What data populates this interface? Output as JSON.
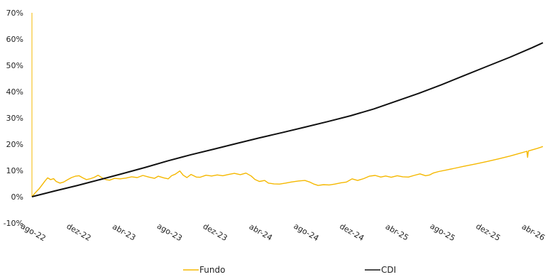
{
  "chart_data": {
    "type": "line",
    "title": "",
    "xlabel": "",
    "ylabel": "",
    "ylim": [
      -10,
      70
    ],
    "yticks": [
      -10,
      0,
      10,
      20,
      30,
      40,
      50,
      60,
      70
    ],
    "ytick_labels": [
      "-10%",
      "0%",
      "10%",
      "20%",
      "30%",
      "40%",
      "50%",
      "60%",
      "70%"
    ],
    "xlim": [
      "2022-08-01",
      "2026-04-30"
    ],
    "xticks": [
      "2022-08-01",
      "2022-12-01",
      "2023-04-01",
      "2023-08-01",
      "2023-12-01",
      "2024-04-01",
      "2024-08-01",
      "2024-12-01",
      "2025-04-01",
      "2025-08-01",
      "2025-12-01",
      "2026-04-01"
    ],
    "xtick_labels": [
      "ago-22",
      "dez-22",
      "abr-23",
      "ago-23",
      "dez-23",
      "abr-24",
      "ago-24",
      "dez-24",
      "abr-25",
      "ago-25",
      "dez-25",
      "abr-26"
    ],
    "grid": false,
    "legend_position": "bottom",
    "series": [
      {
        "name": "Fundo",
        "color": "#F5B800",
        "points": [
          [
            "2022-08-01",
            0
          ],
          [
            "2022-08-10",
            1.5
          ],
          [
            "2022-08-20",
            3.0
          ],
          [
            "2022-08-28",
            4.5
          ],
          [
            "2022-09-05",
            6.0
          ],
          [
            "2022-09-12",
            7.2
          ],
          [
            "2022-09-20",
            6.5
          ],
          [
            "2022-09-28",
            6.9
          ],
          [
            "2022-10-05",
            5.8
          ],
          [
            "2022-10-15",
            5.2
          ],
          [
            "2022-10-25",
            5.6
          ],
          [
            "2022-11-05",
            6.5
          ],
          [
            "2022-11-15",
            7.3
          ],
          [
            "2022-11-25",
            7.8
          ],
          [
            "2022-12-05",
            8.0
          ],
          [
            "2022-12-15",
            7.2
          ],
          [
            "2022-12-25",
            6.5
          ],
          [
            "2023-01-05",
            6.9
          ],
          [
            "2023-01-15",
            7.4
          ],
          [
            "2023-01-25",
            8.2
          ],
          [
            "2023-02-05",
            7.2
          ],
          [
            "2023-02-15",
            6.5
          ],
          [
            "2023-02-25",
            6.3
          ],
          [
            "2023-03-10",
            7.0
          ],
          [
            "2023-03-25",
            6.8
          ],
          [
            "2023-04-10",
            7.1
          ],
          [
            "2023-04-25",
            7.6
          ],
          [
            "2023-05-10",
            7.3
          ],
          [
            "2023-05-25",
            8.1
          ],
          [
            "2023-06-10",
            7.5
          ],
          [
            "2023-06-25",
            7.0
          ],
          [
            "2023-07-05",
            7.8
          ],
          [
            "2023-07-20",
            7.2
          ],
          [
            "2023-08-01",
            6.8
          ],
          [
            "2023-08-10",
            8.0
          ],
          [
            "2023-08-20",
            8.6
          ],
          [
            "2023-09-01",
            9.8
          ],
          [
            "2023-09-10",
            8.2
          ],
          [
            "2023-09-20",
            7.3
          ],
          [
            "2023-10-01",
            8.5
          ],
          [
            "2023-10-15",
            7.5
          ],
          [
            "2023-10-25",
            7.4
          ],
          [
            "2023-11-10",
            8.2
          ],
          [
            "2023-11-25",
            7.9
          ],
          [
            "2023-12-10",
            8.3
          ],
          [
            "2023-12-25",
            8.0
          ],
          [
            "2024-01-10",
            8.5
          ],
          [
            "2024-01-25",
            8.9
          ],
          [
            "2024-02-10",
            8.4
          ],
          [
            "2024-02-25",
            9.0
          ],
          [
            "2024-03-10",
            7.9
          ],
          [
            "2024-03-20",
            6.6
          ],
          [
            "2024-04-01",
            5.8
          ],
          [
            "2024-04-15",
            6.2
          ],
          [
            "2024-04-25",
            5.2
          ],
          [
            "2024-05-10",
            4.9
          ],
          [
            "2024-05-25",
            4.8
          ],
          [
            "2024-06-10",
            5.2
          ],
          [
            "2024-06-25",
            5.6
          ],
          [
            "2024-07-15",
            6.0
          ],
          [
            "2024-08-01",
            6.2
          ],
          [
            "2024-08-15",
            5.5
          ],
          [
            "2024-08-25",
            4.8
          ],
          [
            "2024-09-05",
            4.3
          ],
          [
            "2024-09-20",
            4.6
          ],
          [
            "2024-10-05",
            4.5
          ],
          [
            "2024-10-20",
            4.8
          ],
          [
            "2024-11-05",
            5.3
          ],
          [
            "2024-11-20",
            5.6
          ],
          [
            "2024-12-05",
            6.8
          ],
          [
            "2024-12-20",
            6.2
          ],
          [
            "2025-01-05",
            6.9
          ],
          [
            "2025-01-20",
            7.8
          ],
          [
            "2025-02-05",
            8.1
          ],
          [
            "2025-02-20",
            7.5
          ],
          [
            "2025-03-05",
            7.9
          ],
          [
            "2025-03-20",
            7.4
          ],
          [
            "2025-04-05",
            8.0
          ],
          [
            "2025-04-20",
            7.6
          ],
          [
            "2025-05-05",
            7.5
          ],
          [
            "2025-05-20",
            8.1
          ],
          [
            "2025-06-05",
            8.7
          ],
          [
            "2025-06-20",
            8.0
          ],
          [
            "2025-07-01",
            8.3
          ],
          [
            "2025-07-10",
            9.0
          ],
          [
            "2025-07-25",
            9.6
          ],
          [
            "2025-08-15",
            10.2
          ],
          [
            "2025-09-05",
            10.8
          ],
          [
            "2025-10-01",
            11.6
          ],
          [
            "2025-11-01",
            12.5
          ],
          [
            "2025-12-01",
            13.4
          ],
          [
            "2026-01-01",
            14.4
          ],
          [
            "2026-02-01",
            15.5
          ],
          [
            "2026-03-01",
            16.6
          ],
          [
            "2026-03-18",
            17.3
          ],
          [
            "2026-03-20",
            15.0
          ],
          [
            "2026-03-22",
            17.4
          ],
          [
            "2026-04-15",
            18.4
          ],
          [
            "2026-04-30",
            19.1
          ]
        ]
      },
      {
        "name": "CDI",
        "color": "#111111",
        "points": [
          [
            "2022-08-01",
            0
          ],
          [
            "2022-10-01",
            2.2
          ],
          [
            "2022-12-01",
            4.3
          ],
          [
            "2023-02-01",
            6.6
          ],
          [
            "2023-04-01",
            8.8
          ],
          [
            "2023-06-01",
            11.2
          ],
          [
            "2023-08-01",
            13.7
          ],
          [
            "2023-10-01",
            16.0
          ],
          [
            "2023-12-01",
            18.1
          ],
          [
            "2024-02-01",
            20.3
          ],
          [
            "2024-04-01",
            22.4
          ],
          [
            "2024-06-01",
            24.4
          ],
          [
            "2024-08-01",
            26.5
          ],
          [
            "2024-10-01",
            28.6
          ],
          [
            "2024-12-01",
            30.8
          ],
          [
            "2025-02-01",
            33.4
          ],
          [
            "2025-04-01",
            36.3
          ],
          [
            "2025-06-01",
            39.3
          ],
          [
            "2025-08-01",
            42.6
          ],
          [
            "2025-10-01",
            46.1
          ],
          [
            "2025-12-01",
            49.6
          ],
          [
            "2026-02-01",
            53.1
          ],
          [
            "2026-04-01",
            56.7
          ],
          [
            "2026-04-30",
            58.6
          ]
        ]
      }
    ]
  }
}
